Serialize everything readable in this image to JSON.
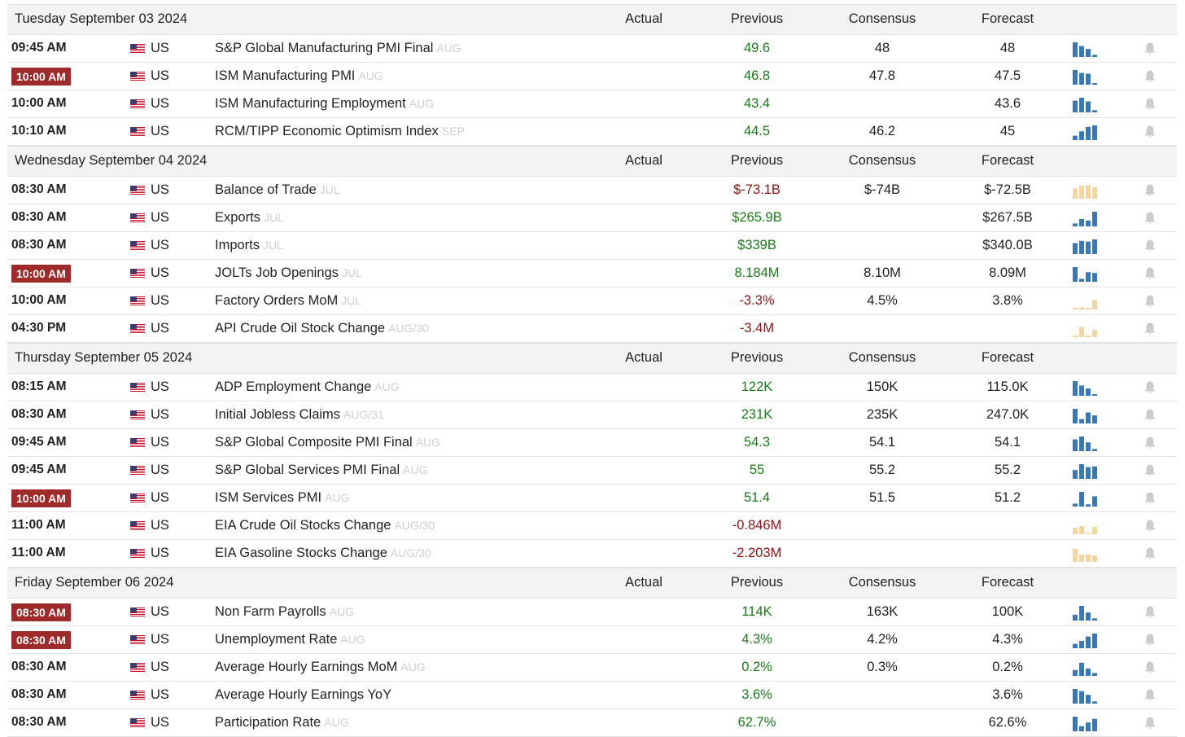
{
  "columns": {
    "actual": "Actual",
    "previous": "Previous",
    "consensus": "Consensus",
    "forecast": "Forecast"
  },
  "colors": {
    "positive": "#1a7a1a",
    "negative": "#8a1414",
    "highlight_time": "#9e2a2a",
    "spark_blue": "#3a78b4",
    "spark_tan": "#f2d5a2",
    "bell": "#cccccc"
  },
  "days": [
    {
      "date": "Tuesday September 03 2024",
      "events": [
        {
          "time": "09:45 AM",
          "highlight": false,
          "country": "US",
          "event": "S&P Global Manufacturing PMI Final",
          "ref": "AUG",
          "previous": "49.6",
          "prev_trend": "pos",
          "consensus": "48",
          "forecast": "48",
          "spark": [
            1.0,
            0.75,
            0.55,
            0.15
          ],
          "spark_color": "blue",
          "icon": "bell-icon"
        },
        {
          "time": "10:00 AM",
          "highlight": true,
          "country": "US",
          "event": "ISM Manufacturing PMI",
          "ref": "AUG",
          "previous": "46.8",
          "prev_trend": "pos",
          "consensus": "47.8",
          "forecast": "47.5",
          "spark": [
            1.0,
            0.8,
            0.75,
            0.1
          ],
          "spark_color": "blue",
          "icon": "bell-icon"
        },
        {
          "time": "10:00 AM",
          "highlight": false,
          "country": "US",
          "event": "ISM Manufacturing Employment",
          "ref": "AUG",
          "previous": "43.4",
          "prev_trend": "pos",
          "consensus": "",
          "forecast": "43.6",
          "spark": [
            0.8,
            1.0,
            0.75,
            0.15
          ],
          "spark_color": "blue",
          "icon": "bell-icon"
        },
        {
          "time": "10:10 AM",
          "highlight": false,
          "country": "US",
          "event": "RCM/TIPP Economic Optimism Index",
          "ref": "SEP",
          "previous": "44.5",
          "prev_trend": "pos",
          "consensus": "46.2",
          "forecast": "45",
          "spark": [
            0.3,
            0.6,
            0.9,
            1.0
          ],
          "spark_color": "blue",
          "icon": "bell-icon"
        }
      ]
    },
    {
      "date": "Wednesday September 04 2024",
      "events": [
        {
          "time": "08:30 AM",
          "highlight": false,
          "country": "US",
          "event": "Balance of Trade",
          "ref": "JUL",
          "previous": "$-73.1B",
          "prev_trend": "neg",
          "consensus": "$-74B",
          "forecast": "$-72.5B",
          "spark": [
            0.7,
            0.9,
            0.9,
            0.8
          ],
          "spark_color": "tan",
          "icon": "bell-icon"
        },
        {
          "time": "08:30 AM",
          "highlight": false,
          "country": "US",
          "event": "Exports",
          "ref": "JUL",
          "previous": "$265.9B",
          "prev_trend": "pos",
          "consensus": "",
          "forecast": "$267.5B",
          "spark": [
            0.2,
            0.5,
            0.4,
            1.0
          ],
          "spark_color": "blue",
          "icon": "bell-icon"
        },
        {
          "time": "08:30 AM",
          "highlight": false,
          "country": "US",
          "event": "Imports",
          "ref": "JUL",
          "previous": "$339B",
          "prev_trend": "pos",
          "consensus": "",
          "forecast": "$340.0B",
          "spark": [
            0.75,
            0.9,
            0.85,
            1.0
          ],
          "spark_color": "blue",
          "icon": "bell-icon"
        },
        {
          "time": "10:00 AM",
          "highlight": true,
          "country": "US",
          "event": "JOLTs Job Openings",
          "ref": "JUL",
          "previous": "8.184M",
          "prev_trend": "pos",
          "consensus": "8.10M",
          "forecast": "8.09M",
          "spark": [
            1.0,
            0.2,
            0.65,
            0.6
          ],
          "spark_color": "blue",
          "icon": "bell-icon"
        },
        {
          "time": "10:00 AM",
          "highlight": false,
          "country": "US",
          "event": "Factory Orders MoM",
          "ref": "JUL",
          "previous": "-3.3%",
          "prev_trend": "neg",
          "consensus": "4.5%",
          "forecast": "3.8%",
          "spark": [
            0.1,
            0.15,
            0.1,
            0.65
          ],
          "spark_color": "tan",
          "icon": "bell-icon"
        },
        {
          "time": "04:30 PM",
          "highlight": false,
          "country": "US",
          "event": "API Crude Oil Stock Change",
          "ref": "AUG/30",
          "previous": "-3.4M",
          "prev_trend": "neg",
          "consensus": "",
          "forecast": "",
          "spark": [
            0.1,
            0.7,
            0.1,
            0.5
          ],
          "spark_color": "tan",
          "icon": "bell-icon"
        }
      ]
    },
    {
      "date": "Thursday September 05 2024",
      "events": [
        {
          "time": "08:15 AM",
          "highlight": false,
          "country": "US",
          "event": "ADP Employment Change",
          "ref": "AUG",
          "previous": "122K",
          "prev_trend": "pos",
          "consensus": "150K",
          "forecast": "115.0K",
          "spark": [
            1.0,
            0.7,
            0.5,
            0.1
          ],
          "spark_color": "blue",
          "icon": "bell-icon"
        },
        {
          "time": "08:30 AM",
          "highlight": false,
          "country": "US",
          "event": "Initial Jobless Claims",
          "ref": "AUG/31",
          "previous": "231K",
          "prev_trend": "pos",
          "consensus": "235K",
          "forecast": "247.0K",
          "spark": [
            1.0,
            0.3,
            0.75,
            0.55
          ],
          "spark_color": "blue",
          "icon": "bell-icon"
        },
        {
          "time": "09:45 AM",
          "highlight": false,
          "country": "US",
          "event": "S&P Global Composite PMI Final",
          "ref": "AUG",
          "previous": "54.3",
          "prev_trend": "pos",
          "consensus": "54.1",
          "forecast": "54.1",
          "spark": [
            0.8,
            1.0,
            0.6,
            0.15
          ],
          "spark_color": "blue",
          "icon": "bell-icon"
        },
        {
          "time": "09:45 AM",
          "highlight": false,
          "country": "US",
          "event": "S&P Global Services PMI Final",
          "ref": "AUG",
          "previous": "55",
          "prev_trend": "pos",
          "consensus": "55.2",
          "forecast": "55.2",
          "spark": [
            0.6,
            1.0,
            0.8,
            0.85
          ],
          "spark_color": "blue",
          "icon": "bell-icon"
        },
        {
          "time": "10:00 AM",
          "highlight": true,
          "country": "US",
          "event": "ISM Services PMI",
          "ref": "AUG",
          "previous": "51.4",
          "prev_trend": "pos",
          "consensus": "51.5",
          "forecast": "51.2",
          "spark": [
            0.2,
            1.0,
            0.15,
            0.7
          ],
          "spark_color": "blue",
          "icon": "bell-icon"
        },
        {
          "time": "11:00 AM",
          "highlight": false,
          "country": "US",
          "event": "EIA Crude Oil Stocks Change",
          "ref": "AUG/30",
          "previous": "-0.846M",
          "prev_trend": "neg",
          "consensus": "",
          "forecast": "",
          "spark": [
            0.45,
            0.55,
            0.1,
            0.5
          ],
          "spark_color": "tan",
          "icon": "bell-icon"
        },
        {
          "time": "11:00 AM",
          "highlight": false,
          "country": "US",
          "event": "EIA Gasoline Stocks Change",
          "ref": "AUG/30",
          "previous": "-2.203M",
          "prev_trend": "neg",
          "consensus": "",
          "forecast": "",
          "spark": [
            0.9,
            0.5,
            0.5,
            0.45
          ],
          "spark_color": "tan",
          "icon": "bell-icon"
        }
      ]
    },
    {
      "date": "Friday September 06 2024",
      "events": [
        {
          "time": "08:30 AM",
          "highlight": true,
          "country": "US",
          "event": "Non Farm Payrolls",
          "ref": "AUG",
          "previous": "114K",
          "prev_trend": "pos",
          "consensus": "163K",
          "forecast": "100K",
          "spark": [
            0.4,
            1.0,
            0.55,
            0.15
          ],
          "spark_color": "blue",
          "icon": "bell-icon"
        },
        {
          "time": "08:30 AM",
          "highlight": true,
          "country": "US",
          "event": "Unemployment Rate",
          "ref": "AUG",
          "previous": "4.3%",
          "prev_trend": "pos",
          "consensus": "4.2%",
          "forecast": "4.3%",
          "spark": [
            0.3,
            0.5,
            0.8,
            1.0
          ],
          "spark_color": "blue",
          "icon": "bell-icon"
        },
        {
          "time": "08:30 AM",
          "highlight": false,
          "country": "US",
          "event": "Average Hourly Earnings MoM",
          "ref": "AUG",
          "previous": "0.2%",
          "prev_trend": "pos",
          "consensus": "0.3%",
          "forecast": "0.2%",
          "spark": [
            0.4,
            0.9,
            0.5,
            0.2
          ],
          "spark_color": "blue",
          "icon": "bell-icon"
        },
        {
          "time": "08:30 AM",
          "highlight": false,
          "country": "US",
          "event": "Average Hourly Earnings YoY",
          "ref": "",
          "previous": "3.6%",
          "prev_trend": "pos",
          "consensus": "",
          "forecast": "3.6%",
          "spark": [
            1.0,
            0.85,
            0.6,
            0.15
          ],
          "spark_color": "blue",
          "icon": "bell-icon"
        },
        {
          "time": "08:30 AM",
          "highlight": false,
          "country": "US",
          "event": "Participation Rate",
          "ref": "AUG",
          "previous": "62.7%",
          "prev_trend": "pos",
          "consensus": "",
          "forecast": "62.6%",
          "spark": [
            1.0,
            0.35,
            0.6,
            0.85
          ],
          "spark_color": "blue",
          "icon": "bell-icon"
        }
      ]
    }
  ]
}
